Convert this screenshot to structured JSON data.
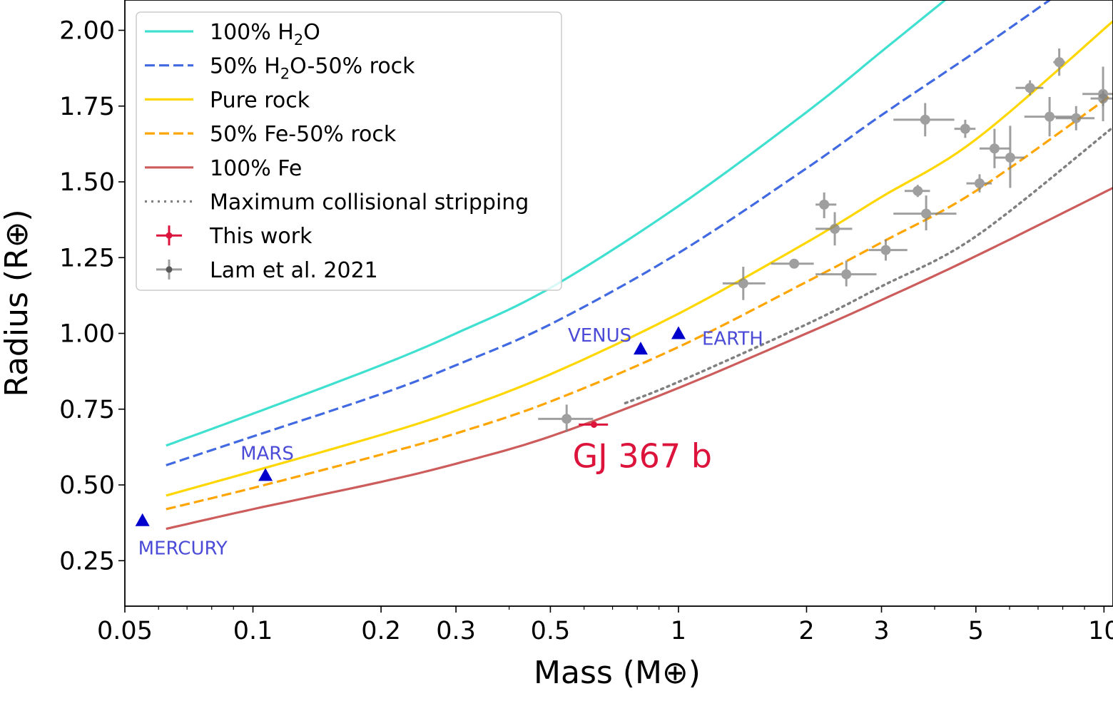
{
  "chart_data": {
    "type": "scatter",
    "xlabel": "Mass (M⊕)",
    "ylabel": "Radius (R⊕)",
    "xscale": "log",
    "xlim": [
      0.05,
      10.5
    ],
    "ylim": [
      0.1,
      2.1
    ],
    "xticks": [
      0.05,
      0.1,
      0.2,
      0.3,
      0.5,
      1,
      2,
      3,
      5,
      10
    ],
    "xtick_labels": [
      "0.05",
      "0.1",
      "0.2",
      "0.3",
      "0.5",
      "1",
      "2",
      "3",
      "5",
      "10"
    ],
    "yticks": [
      0.25,
      0.5,
      0.75,
      1.0,
      1.25,
      1.5,
      1.75,
      2.0
    ],
    "ytick_labels": [
      "0.25",
      "0.50",
      "0.75",
      "1.00",
      "1.25",
      "1.50",
      "1.75",
      "2.00"
    ],
    "grid": false,
    "legend_position": "upper-left",
    "curves": [
      {
        "name": "100% H₂O",
        "legend": [
          "100% H",
          "2",
          "O"
        ],
        "color": "#40e0d0",
        "style": "solid",
        "x": [
          0.0625,
          0.1,
          0.2,
          0.3,
          0.5,
          1,
          2,
          3,
          4.5
        ],
        "y": [
          0.63,
          0.735,
          0.895,
          1.0,
          1.15,
          1.42,
          1.73,
          1.93,
          2.13
        ]
      },
      {
        "name": "50% H₂O-50% rock",
        "legend": [
          "50% H",
          "2",
          "O-50% rock"
        ],
        "color": "#4169e1",
        "style": "dashed",
        "x": [
          0.0625,
          0.1,
          0.2,
          0.3,
          0.5,
          1,
          2,
          3,
          5,
          8
        ],
        "y": [
          0.565,
          0.66,
          0.8,
          0.895,
          1.03,
          1.265,
          1.545,
          1.72,
          1.93,
          2.13
        ]
      },
      {
        "name": "Pure rock",
        "legend": [
          "Pure rock"
        ],
        "color": "#ffd700",
        "style": "solid",
        "x": [
          0.0625,
          0.1,
          0.2,
          0.3,
          0.5,
          1,
          2,
          3,
          5,
          10.5
        ],
        "y": [
          0.465,
          0.545,
          0.665,
          0.745,
          0.865,
          1.065,
          1.3,
          1.45,
          1.64,
          2.03
        ]
      },
      {
        "name": "50% Fe-50% rock",
        "legend": [
          "50% Fe-50% rock"
        ],
        "color": "#ffa500",
        "style": "dashed",
        "x": [
          0.0625,
          0.1,
          0.2,
          0.3,
          0.5,
          1,
          2,
          3,
          5,
          10.5
        ],
        "y": [
          0.42,
          0.49,
          0.6,
          0.67,
          0.775,
          0.955,
          1.17,
          1.3,
          1.47,
          1.79
        ]
      },
      {
        "name": "100% Fe",
        "legend": [
          "100% Fe"
        ],
        "color": "#cd5c5c",
        "style": "solid",
        "x": [
          0.0625,
          0.1,
          0.2,
          0.3,
          0.5,
          1,
          2,
          3,
          5,
          10.5
        ],
        "y": [
          0.355,
          0.42,
          0.51,
          0.57,
          0.66,
          0.82,
          1.0,
          1.11,
          1.255,
          1.48
        ]
      },
      {
        "name": "Maximum collisional stripping",
        "legend": [
          "Maximum collisional stripping"
        ],
        "color": "#808080",
        "style": "dotted",
        "x": [
          0.75,
          1,
          2,
          3,
          5,
          10.5
        ],
        "y": [
          0.77,
          0.84,
          1.03,
          1.155,
          1.32,
          1.68
        ]
      }
    ],
    "this_work": {
      "name": "This work",
      "color": "#dc143c",
      "points": [
        {
          "x": 0.633,
          "y": 0.699,
          "xlo": 0.583,
          "xhi": 0.683,
          "ylo": 0.689,
          "yhi": 0.709
        }
      ]
    },
    "lam2021": {
      "name": "Lam et al. 2021",
      "color": "#808080",
      "points": [
        {
          "x": 0.546,
          "y": 0.718,
          "xlo": 0.468,
          "xhi": 0.63,
          "ylo": 0.675,
          "yhi": 0.765
        },
        {
          "x": 1.42,
          "y": 1.165,
          "xlo": 1.27,
          "xhi": 1.6,
          "ylo": 1.11,
          "yhi": 1.22
        },
        {
          "x": 1.87,
          "y": 1.23,
          "xlo": 1.65,
          "xhi": 2.08,
          "ylo": 1.215,
          "yhi": 1.245
        },
        {
          "x": 2.2,
          "y": 1.425,
          "xlo": 2.1,
          "xhi": 2.35,
          "ylo": 1.38,
          "yhi": 1.465
        },
        {
          "x": 2.33,
          "y": 1.345,
          "xlo": 2.1,
          "xhi": 2.56,
          "ylo": 1.29,
          "yhi": 1.4
        },
        {
          "x": 2.48,
          "y": 1.195,
          "xlo": 2.1,
          "xhi": 2.92,
          "ylo": 1.155,
          "yhi": 1.24
        },
        {
          "x": 3.07,
          "y": 1.275,
          "xlo": 2.8,
          "xhi": 3.45,
          "ylo": 1.24,
          "yhi": 1.31
        },
        {
          "x": 3.65,
          "y": 1.47,
          "xlo": 3.4,
          "xhi": 3.9,
          "ylo": 1.45,
          "yhi": 1.49
        },
        {
          "x": 3.8,
          "y": 1.705,
          "xlo": 3.2,
          "xhi": 4.45,
          "ylo": 1.65,
          "yhi": 1.76
        },
        {
          "x": 3.82,
          "y": 1.395,
          "xlo": 3.2,
          "xhi": 4.5,
          "ylo": 1.34,
          "yhi": 1.455
        },
        {
          "x": 4.72,
          "y": 1.675,
          "xlo": 4.45,
          "xhi": 4.99,
          "ylo": 1.645,
          "yhi": 1.705
        },
        {
          "x": 5.1,
          "y": 1.495,
          "xlo": 4.75,
          "xhi": 5.45,
          "ylo": 1.465,
          "yhi": 1.525
        },
        {
          "x": 5.53,
          "y": 1.61,
          "xlo": 5.1,
          "xhi": 6.0,
          "ylo": 1.545,
          "yhi": 1.675
        },
        {
          "x": 6.02,
          "y": 1.58,
          "xlo": 5.55,
          "xhi": 6.5,
          "ylo": 1.48,
          "yhi": 1.685
        },
        {
          "x": 6.7,
          "y": 1.81,
          "xlo": 6.2,
          "xhi": 7.2,
          "ylo": 1.785,
          "yhi": 1.835
        },
        {
          "x": 7.45,
          "y": 1.715,
          "xlo": 6.5,
          "xhi": 8.4,
          "ylo": 1.65,
          "yhi": 1.78
        },
        {
          "x": 7.85,
          "y": 1.895,
          "xlo": 7.6,
          "xhi": 8.1,
          "ylo": 1.85,
          "yhi": 1.94
        },
        {
          "x": 8.6,
          "y": 1.71,
          "xlo": 7.7,
          "xhi": 9.5,
          "ylo": 1.67,
          "yhi": 1.75
        },
        {
          "x": 9.95,
          "y": 1.79,
          "xlo": 8.9,
          "xhi": 11.0,
          "ylo": 1.7,
          "yhi": 1.88
        },
        {
          "x": 9.95,
          "y": 1.775,
          "xlo": 9.3,
          "xhi": 10.6,
          "ylo": 1.75,
          "yhi": 1.8
        }
      ]
    },
    "solar_system": {
      "color": "#0000cd",
      "label_color": "#4b4bd8",
      "points": [
        {
          "name": "MERCURY",
          "x": 0.055,
          "y": 0.383
        },
        {
          "name": "MARS",
          "x": 0.107,
          "y": 0.532
        },
        {
          "name": "VENUS",
          "x": 0.815,
          "y": 0.949
        },
        {
          "name": "EARTH",
          "x": 1.0,
          "y": 1.0
        }
      ]
    },
    "annotation": {
      "text": "GJ 367 b",
      "x": 0.6,
      "y": 0.6,
      "color": "#dc143c"
    }
  }
}
